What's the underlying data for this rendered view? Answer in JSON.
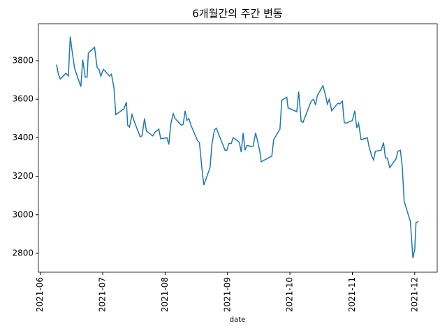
{
  "chart_data": {
    "type": "line",
    "title": "6개월간의 주간 변동",
    "xlabel": "date",
    "x": [
      6.26,
      6.29,
      6.32,
      6.41,
      6.45,
      6.48,
      6.51,
      6.55,
      6.65,
      6.68,
      6.72,
      6.75,
      6.77,
      6.87,
      6.91,
      6.94,
      6.97,
      7.01,
      7.04,
      7.11,
      7.14,
      7.18,
      7.21,
      7.34,
      7.38,
      7.4,
      7.43,
      7.47,
      7.5,
      7.57,
      7.6,
      7.63,
      7.67,
      7.7,
      7.8,
      7.84,
      7.9,
      7.93,
      8.03,
      8.06,
      8.09,
      8.13,
      8.16,
      8.23,
      8.26,
      8.29,
      8.32,
      8.35,
      8.38,
      8.42,
      8.52,
      8.55,
      8.59,
      8.62,
      8.72,
      8.75,
      8.79,
      8.82,
      8.96,
      8.99,
      9.02,
      9.06,
      9.09,
      9.16,
      9.19,
      9.22,
      9.25,
      9.28,
      9.31,
      9.38,
      9.41,
      9.45,
      9.48,
      9.52,
      9.54,
      9.71,
      9.74,
      9.84,
      9.87,
      9.92,
      9.95,
      9.97,
      10.11,
      10.14,
      10.18,
      10.21,
      10.34,
      10.38,
      10.41,
      10.44,
      10.53,
      10.57,
      10.6,
      10.63,
      10.67,
      10.77,
      10.8,
      10.84,
      10.87,
      10.9,
      11.0,
      11.04,
      11.07,
      11.1,
      11.14,
      11.24,
      11.27,
      11.31,
      11.34,
      11.37,
      11.46,
      11.5,
      11.53,
      11.56,
      11.6,
      11.7,
      11.73,
      11.77,
      11.8,
      11.83,
      11.93,
      11.97,
      12.0,
      12.02,
      12.06
    ],
    "series": [
      {
        "color": "#1f77b4",
        "values": [
          3780,
          3730,
          3705,
          3735,
          3720,
          3925,
          3850,
          3760,
          3665,
          3805,
          3715,
          3715,
          3840,
          3870,
          3765,
          3755,
          3720,
          3755,
          3745,
          3720,
          3730,
          3660,
          3520,
          3550,
          3585,
          3465,
          3455,
          3520,
          3490,
          3430,
          3405,
          3410,
          3500,
          3435,
          3410,
          3430,
          3445,
          3395,
          3400,
          3365,
          3470,
          3525,
          3500,
          3475,
          3465,
          3470,
          3540,
          3490,
          3500,
          3460,
          3385,
          3375,
          3240,
          3155,
          3245,
          3365,
          3440,
          3450,
          3335,
          3335,
          3370,
          3370,
          3400,
          3385,
          3375,
          3325,
          3425,
          3335,
          3360,
          3355,
          3355,
          3425,
          3385,
          3325,
          3275,
          3305,
          3390,
          3445,
          3595,
          3605,
          3610,
          3555,
          3535,
          3640,
          3485,
          3480,
          3590,
          3600,
          3570,
          3620,
          3670,
          3620,
          3575,
          3600,
          3540,
          3580,
          3575,
          3590,
          3480,
          3475,
          3490,
          3540,
          3450,
          3475,
          3390,
          3400,
          3350,
          3305,
          3285,
          3330,
          3335,
          3375,
          3295,
          3295,
          3245,
          3290,
          3330,
          3335,
          3250,
          3070,
          2965,
          2775,
          2820,
          2960,
          2965
        ]
      }
    ],
    "xlim": [
      5.97,
      12.36
    ],
    "xticks": [
      {
        "value": 6,
        "label": "2021-06"
      },
      {
        "value": 7,
        "label": "2021-07"
      },
      {
        "value": 8,
        "label": "2021-08"
      },
      {
        "value": 9,
        "label": "2021-09"
      },
      {
        "value": 10,
        "label": "2021-10"
      },
      {
        "value": 11,
        "label": "2021-11"
      },
      {
        "value": 12,
        "label": "2021-12"
      }
    ],
    "ylim": [
      2702,
      3992
    ],
    "yticks": [
      2800,
      3000,
      3200,
      3400,
      3600,
      3800
    ]
  }
}
